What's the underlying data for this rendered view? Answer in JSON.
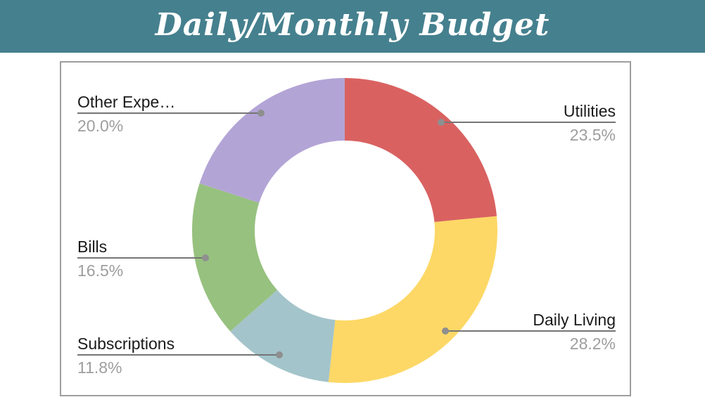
{
  "header": {
    "title": "Daily/Monthly Budget",
    "background_color": "#45808e",
    "text_color": "#ffffff"
  },
  "chart_data": {
    "type": "pie",
    "subtype": "donut",
    "title": "Daily/Monthly Budget",
    "legend_position": "outside-callout-labels",
    "start_angle_deg": 0,
    "direction": "clockwise",
    "inner_radius_ratio": 0.59,
    "slices": [
      {
        "label": "Utilities",
        "value": 23.5,
        "pct_label": "23.5%",
        "color": "#d96261"
      },
      {
        "label": "Daily Living",
        "value": 28.2,
        "pct_label": "28.2%",
        "color": "#fdd866"
      },
      {
        "label": "Subscriptions",
        "value": 11.8,
        "pct_label": "11.8%",
        "color": "#a3c4ca"
      },
      {
        "label": "Bills",
        "value": 16.5,
        "pct_label": "16.5%",
        "color": "#97c17f"
      },
      {
        "label": "Other Expe…",
        "value": 20.0,
        "pct_label": "20.0%",
        "color": "#b3a4d6"
      }
    ],
    "callout_colors": {
      "label": "#1a1a1a",
      "percent": "#9e9e9e",
      "line": "#757575",
      "dot": "#8f8f8f"
    },
    "panel_border_color": "#9e9e9e"
  }
}
